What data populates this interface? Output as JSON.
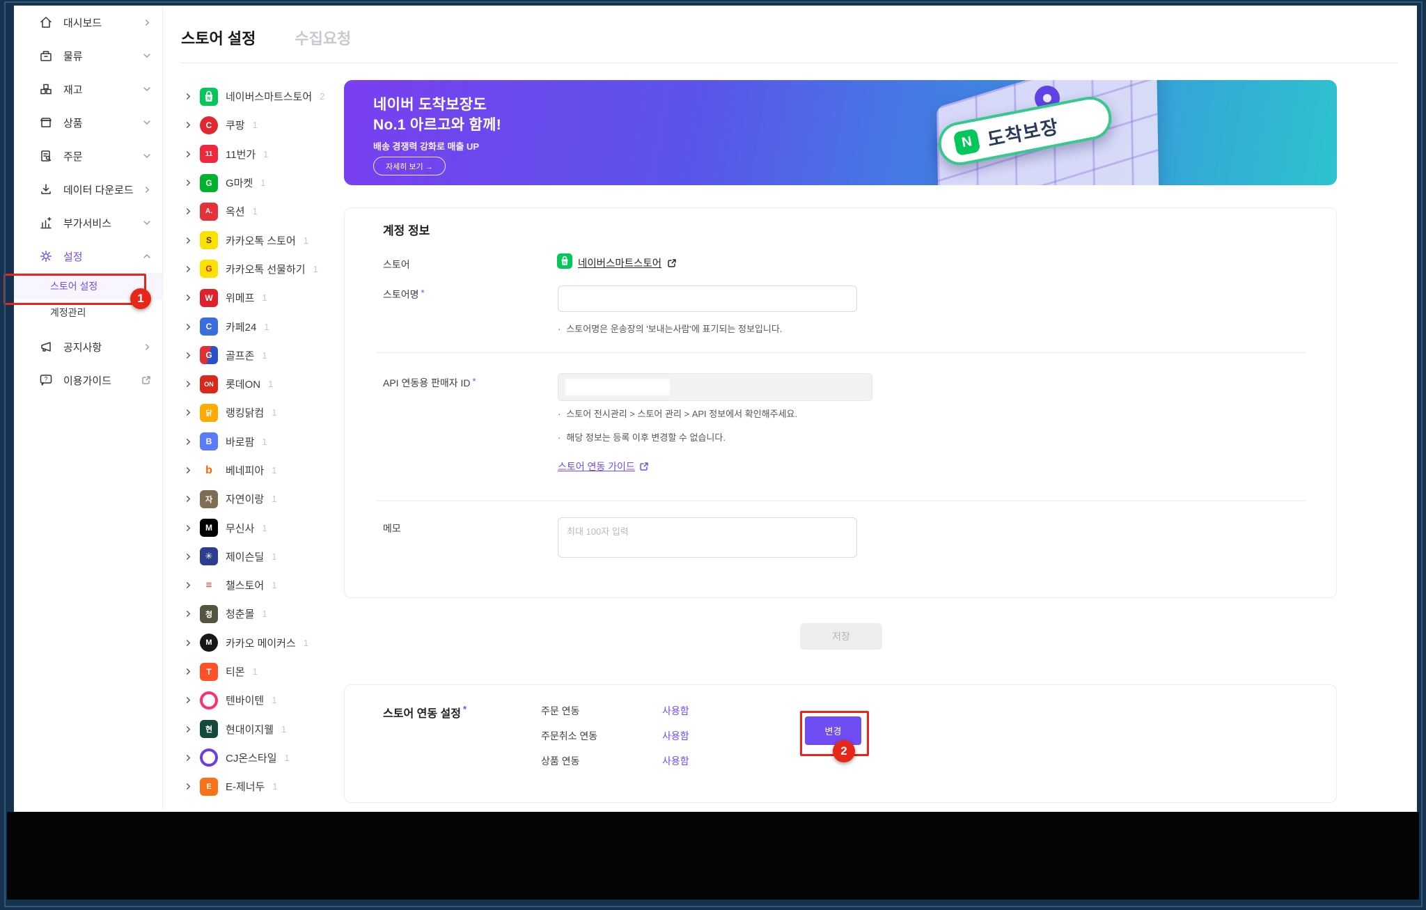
{
  "accent_color": "#6f4df2",
  "annotation_color": "#ea2418",
  "annotations": {
    "step1": "1",
    "step2": "2"
  },
  "required_mark": "*",
  "sidebar": {
    "items": [
      {
        "key": "dashboard",
        "label": "대시보드",
        "icon": "home-icon",
        "trailing": "chevron-right"
      },
      {
        "key": "logistics",
        "label": "물류",
        "icon": "logistics-icon",
        "trailing": "chevron-down"
      },
      {
        "key": "inventory",
        "label": "재고",
        "icon": "inventory-icon",
        "trailing": "chevron-down"
      },
      {
        "key": "products",
        "label": "상품",
        "icon": "product-icon",
        "trailing": "chevron-down"
      },
      {
        "key": "orders",
        "label": "주문",
        "icon": "order-icon",
        "trailing": "chevron-down"
      },
      {
        "key": "data-download",
        "label": "데이터 다운로드",
        "icon": "download-icon",
        "trailing": "chevron-right"
      },
      {
        "key": "addon-services",
        "label": "부가서비스",
        "icon": "addon-icon",
        "trailing": "chevron-down"
      },
      {
        "key": "settings",
        "label": "설정",
        "icon": "gear-icon",
        "trailing": "chevron-up",
        "active": true
      },
      {
        "key": "store-settings",
        "label": "스토어 설정",
        "sub": true,
        "selected": true
      },
      {
        "key": "account-management",
        "label": "계정관리",
        "sub": true
      },
      {
        "key": "notices",
        "label": "공지사항",
        "icon": "megaphone-icon",
        "trailing": "chevron-right",
        "gap": true
      },
      {
        "key": "user-guide",
        "label": "이용가이드",
        "icon": "help-icon",
        "trailing": "external"
      }
    ]
  },
  "tabs": [
    {
      "label": "스토어 설정",
      "active": true
    },
    {
      "label": "수집요청",
      "active": false
    }
  ],
  "store_list": [
    {
      "name": "네이버스마트스토어",
      "count": "2",
      "icon": {
        "shape": "square",
        "bg": "#03c75a",
        "fg": "#ffffff",
        "glyph": "naver-bag"
      }
    },
    {
      "name": "쿠팡",
      "count": "1",
      "icon": {
        "shape": "circle",
        "bg": "#e0282e",
        "fg": "#ffffff",
        "glyph": "C"
      }
    },
    {
      "name": "11번가",
      "count": "1",
      "icon": {
        "shape": "square",
        "bg": "#f0283c",
        "fg": "#ffffff",
        "glyph": "11",
        "fs": 10
      }
    },
    {
      "name": "G마켓",
      "count": "1",
      "icon": {
        "shape": "square",
        "bg": "#00b22d",
        "fg": "#ffffff",
        "glyph": "G"
      }
    },
    {
      "name": "옥션",
      "count": "1",
      "icon": {
        "shape": "square",
        "bg": "#e53238",
        "fg": "#ffffff",
        "glyph": "A.",
        "fs": 10
      }
    },
    {
      "name": "카카오톡 스토어",
      "count": "1",
      "icon": {
        "shape": "square",
        "bg": "#fae100",
        "fg": "#45292c",
        "glyph": "S"
      }
    },
    {
      "name": "카카오톡 선물하기",
      "count": "1",
      "icon": {
        "shape": "square",
        "bg": "#fae100",
        "fg": "#c9252b",
        "glyph": "G"
      }
    },
    {
      "name": "위메프",
      "count": "1",
      "icon": {
        "shape": "square",
        "bg": "#e0202c",
        "fg": "#ffffff",
        "glyph": "W"
      }
    },
    {
      "name": "카페24",
      "count": "1",
      "icon": {
        "shape": "square",
        "bg": "#3a6ede",
        "fg": "#ffffff",
        "glyph": "C"
      }
    },
    {
      "name": "골프존",
      "count": "1",
      "icon": {
        "shape": "square",
        "bg": "linear-gradient(105deg,#e03131 48%,#2b51c9 52%)",
        "fg": "#ffffff",
        "glyph": "G"
      }
    },
    {
      "name": "롯데ON",
      "count": "1",
      "icon": {
        "shape": "square",
        "bg": "#da291c",
        "fg": "#ffffff",
        "glyph": "ON",
        "fs": 9
      }
    },
    {
      "name": "랭킹닭컴",
      "count": "1",
      "icon": {
        "shape": "square",
        "bg": "#ffaa00",
        "fg": "#ffffff",
        "glyph": "닭",
        "fs": 10
      }
    },
    {
      "name": "바로팜",
      "count": "1",
      "icon": {
        "shape": "square",
        "bg": "#5b7cfa",
        "fg": "#ffffff",
        "glyph": "B"
      }
    },
    {
      "name": "베네피아",
      "count": "1",
      "icon": {
        "shape": "square",
        "bg": "#ffffff",
        "fg": "#f76707",
        "glyph": "b",
        "fs": 16
      }
    },
    {
      "name": "자연이랑",
      "count": "1",
      "icon": {
        "shape": "square",
        "bg": "#7d6e55",
        "fg": "#ffffff",
        "glyph": "자",
        "fs": 11
      }
    },
    {
      "name": "무신사",
      "count": "1",
      "icon": {
        "shape": "square",
        "bg": "#000000",
        "fg": "#ffffff",
        "glyph": "M"
      }
    },
    {
      "name": "제이슨딜",
      "count": "1",
      "icon": {
        "shape": "square",
        "bg": "#2c3e8f",
        "fg": "#ffffff",
        "glyph": "✳",
        "fs": 13
      }
    },
    {
      "name": "챌스토어",
      "count": "1",
      "icon": {
        "shape": "square",
        "bg": "#ffffff",
        "fg": "#e8443a",
        "glyph": "≡",
        "fs": 15
      }
    },
    {
      "name": "청춘몰",
      "count": "1",
      "icon": {
        "shape": "square",
        "bg": "#55553f",
        "fg": "#ffffff",
        "glyph": "청",
        "fs": 11
      }
    },
    {
      "name": "카카오 메이커스",
      "count": "1",
      "icon": {
        "shape": "circle",
        "bg": "#17171a",
        "fg": "#ffffff",
        "glyph": "M",
        "fs": 11
      }
    },
    {
      "name": "티몬",
      "count": "1",
      "icon": {
        "shape": "square",
        "bg": "#ff5126",
        "fg": "#ffffff",
        "glyph": "T"
      }
    },
    {
      "name": "텐바이텐",
      "count": "1",
      "icon": {
        "shape": "ring",
        "ring": "#ff2e6e"
      }
    },
    {
      "name": "현대이지웰",
      "count": "1",
      "icon": {
        "shape": "square",
        "bg": "#144a3c",
        "fg": "#ffffff",
        "glyph": "현",
        "fs": 11
      }
    },
    {
      "name": "CJ온스타일",
      "count": "1",
      "icon": {
        "shape": "ring",
        "ring": "#6a3de8"
      }
    },
    {
      "name": "E-제너두",
      "count": "1",
      "icon": {
        "shape": "square",
        "bg": "#f97316",
        "fg": "#ffffff",
        "glyph": "E",
        "fs": 11
      }
    }
  ],
  "banner": {
    "title_line1": "네이버 도착보장도",
    "title_line2": "No.1 아르고와 함께!",
    "subtitle": "배송 경쟁력 강화로 매출 UP",
    "cta": "자세히 보기 →",
    "badge_logo": "N",
    "badge": "도착보장"
  },
  "account": {
    "heading": "계정 정보",
    "store_label": "스토어",
    "store_link": "네이버스마트스토어",
    "store_name_label": "스토어명",
    "store_name_value": "",
    "store_name_note": "스토어명은 운송장의 '보내는사람'에 표기되는 정보입니다.",
    "api_label": "API 연동용 판매자 ID",
    "api_notes": [
      "스토어 전시관리 > 스토어 관리 > API 정보에서 확인해주세요.",
      "해당 정보는 등록 이후 변경할 수 없습니다."
    ],
    "guide_link": "스토어 연동 가이드",
    "memo_label": "메모",
    "memo_placeholder": "최대 100자 입력"
  },
  "save_label": "저장",
  "link_settings": {
    "heading": "스토어 연동 설정",
    "rows": [
      {
        "label": "주문 연동",
        "value": "사용함"
      },
      {
        "label": "주문취소 연동",
        "value": "사용함"
      },
      {
        "label": "상품 연동",
        "value": "사용함"
      }
    ],
    "change_label": "변경"
  }
}
